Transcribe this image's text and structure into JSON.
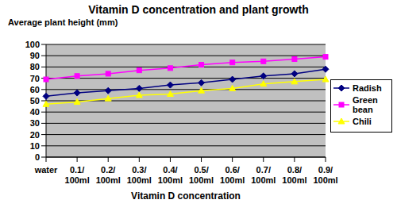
{
  "chart_data": {
    "type": "line",
    "title": "Vitamin D concentration and plant growth",
    "x_label": "Vitamin D concentration",
    "y_label": "Average plant height (mm)",
    "categories": [
      "water",
      "0.1/100ml",
      "0.2/100ml",
      "0.3/100ml",
      "0.4/100ml",
      "0.5/100ml",
      "0.6/100ml",
      "0.7/100ml",
      "0.8/100ml",
      "0.9/100ml"
    ],
    "series": [
      {
        "name": "Radish",
        "color": "#000080",
        "marker": "diamond",
        "values": [
          54,
          57,
          59,
          61,
          64,
          66,
          69,
          72,
          74,
          78
        ]
      },
      {
        "name": "Green bean",
        "color": "#ff00ff",
        "marker": "square",
        "values": [
          69,
          72,
          74,
          77,
          79,
          82,
          84,
          85,
          87,
          89
        ]
      },
      {
        "name": "Chili",
        "color": "#ffff00",
        "marker": "triangle",
        "values": [
          47,
          49,
          52,
          55,
          56,
          59,
          61,
          65,
          67,
          69
        ]
      }
    ],
    "ylim": [
      0,
      100
    ],
    "yticks": [
      0,
      10,
      20,
      30,
      40,
      50,
      60,
      70,
      80,
      90,
      100
    ],
    "grid": true,
    "legend": "right"
  }
}
